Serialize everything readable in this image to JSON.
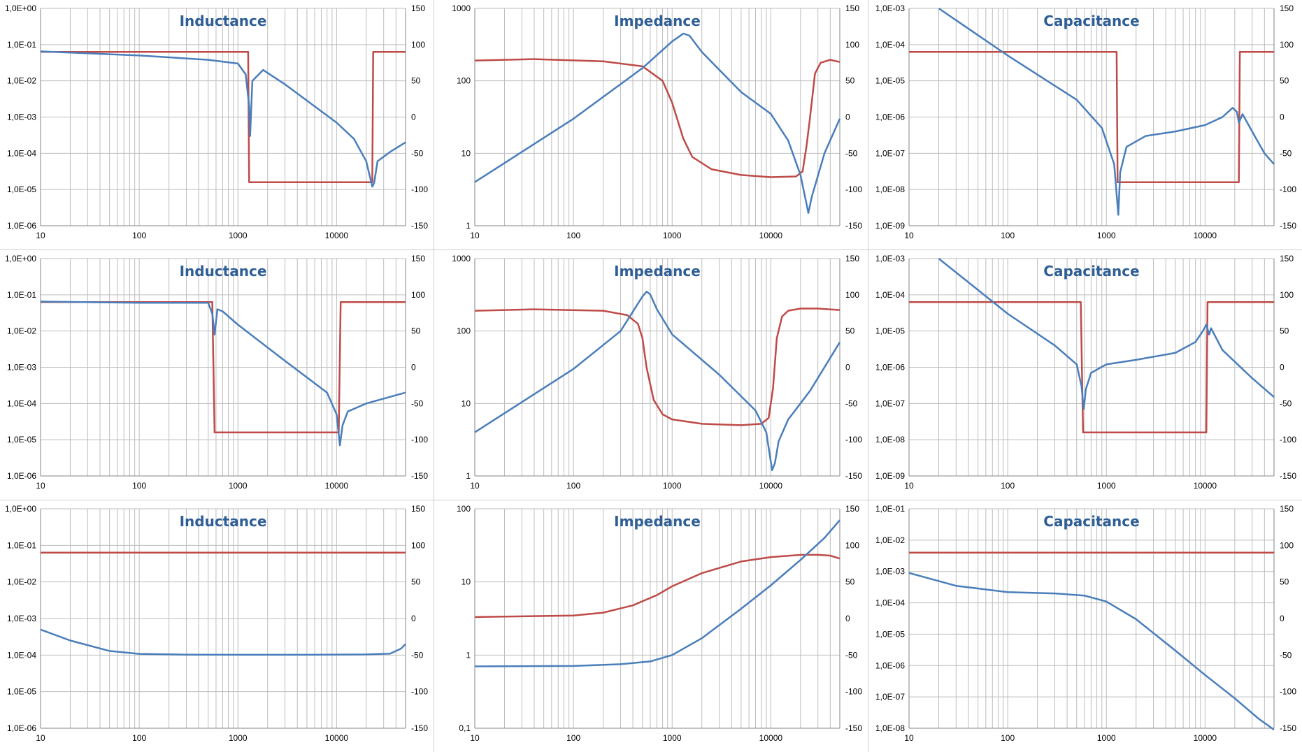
{
  "colors": {
    "primary": "#4a7ebb",
    "secondary": "#be4b48",
    "grid": "#bdbdbd",
    "axis": "#868686",
    "title": "#2e5e96"
  },
  "chart_data": [
    {
      "type": "line",
      "title": "Inductance",
      "x_scale": "log",
      "xlim": [
        10,
        50000
      ],
      "x_ticks": [
        "10",
        "100",
        "1000",
        "10000"
      ],
      "y_left": {
        "scale": "log",
        "lim": [
          1e-06,
          1
        ],
        "ticks": [
          "1,0E+00",
          "1,0E-01",
          "1,0E-02",
          "1,0E-03",
          "1,0E-04",
          "1,0E-05",
          "1,0E-06"
        ]
      },
      "y_right": {
        "lim": [
          -150,
          150
        ],
        "ticks": [
          "150",
          "100",
          "50",
          "0",
          "-50",
          "-100",
          "-150"
        ]
      },
      "series": [
        {
          "axis": "left",
          "color": "#4a7ebb",
          "x": [
            10,
            100,
            500,
            1000,
            1200,
            1300,
            1330,
            1400,
            1800,
            3000,
            10000,
            15000,
            20000,
            23000,
            24000,
            26000,
            35000,
            50000
          ],
          "y": [
            0.065,
            0.05,
            0.038,
            0.03,
            0.015,
            0.002,
            0.0003,
            0.01,
            0.02,
            0.008,
            0.0007,
            0.00025,
            6e-05,
            1.2e-05,
            1.5e-05,
            6e-05,
            0.00011,
            0.0002
          ]
        },
        {
          "axis": "right",
          "color": "#be4b48",
          "x": [
            10,
            1270,
            1300,
            23000,
            23500,
            50000
          ],
          "y": [
            90,
            90,
            -90,
            -90,
            90,
            90
          ]
        }
      ]
    },
    {
      "type": "line",
      "title": "Impedance",
      "x_scale": "log",
      "xlim": [
        10,
        50000
      ],
      "x_ticks": [
        "10",
        "100",
        "1000",
        "10000"
      ],
      "y_left": {
        "scale": "log",
        "lim": [
          1,
          1000
        ],
        "ticks": [
          "1000",
          "100",
          "10",
          "1"
        ]
      },
      "y_right": {
        "lim": [
          -150,
          150
        ],
        "ticks": [
          "150",
          "100",
          "50",
          "0",
          "-50",
          "-100",
          "-150"
        ]
      },
      "series": [
        {
          "axis": "left",
          "color": "#4a7ebb",
          "x": [
            10,
            100,
            500,
            1000,
            1300,
            1500,
            2000,
            5000,
            10000,
            15000,
            20000,
            23000,
            24000,
            26000,
            35000,
            50000
          ],
          "y": [
            4,
            30,
            150,
            350,
            450,
            420,
            250,
            70,
            35,
            15,
            5,
            2,
            1.5,
            2.5,
            10,
            30
          ]
        },
        {
          "axis": "right",
          "color": "#be4b48",
          "x": [
            10,
            40,
            200,
            500,
            800,
            1000,
            1300,
            1600,
            2500,
            5000,
            10000,
            18000,
            21000,
            23000,
            25000,
            28000,
            32000,
            40000,
            50000
          ],
          "y": [
            78,
            80,
            77,
            70,
            50,
            20,
            -30,
            -55,
            -72,
            -80,
            -83,
            -82,
            -75,
            -40,
            0,
            60,
            75,
            79,
            76
          ]
        }
      ]
    },
    {
      "type": "line",
      "title": "Capacitance",
      "x_scale": "log",
      "xlim": [
        10,
        50000
      ],
      "x_ticks": [
        "10",
        "100",
        "1000",
        "10000"
      ],
      "y_left": {
        "scale": "log",
        "lim": [
          1e-09,
          0.001
        ],
        "ticks": [
          "1,0E-03",
          "1,0E-04",
          "1,0E-05",
          "1,0E-06",
          "1,0E-07",
          "1,0E-08",
          "1,0E-09"
        ]
      },
      "y_right": {
        "lim": [
          -150,
          150
        ],
        "ticks": [
          "150",
          "100",
          "50",
          "0",
          "-50",
          "-100",
          "-150"
        ]
      },
      "series": [
        {
          "axis": "left",
          "color": "#4a7ebb",
          "x": [
            20,
            100,
            500,
            900,
            1200,
            1290,
            1320,
            1380,
            1600,
            2500,
            5000,
            10000,
            15000,
            19000,
            21000,
            22000,
            24000,
            30000,
            40000,
            50000
          ],
          "y": [
            0.001,
            5e-05,
            3e-06,
            5e-07,
            5e-08,
            4.5e-09,
            2e-09,
            3e-08,
            1.5e-07,
            3e-07,
            4e-07,
            6e-07,
            1e-06,
            1.8e-06,
            1.4e-06,
            7e-07,
            1.2e-06,
            4e-07,
            1e-07,
            5e-08
          ]
        },
        {
          "axis": "right",
          "color": "#be4b48",
          "x": [
            10,
            1270,
            1300,
            22000,
            22500,
            50000
          ],
          "y": [
            90,
            90,
            -90,
            -90,
            90,
            90
          ]
        }
      ]
    },
    {
      "type": "line",
      "title": "Inductance",
      "x_scale": "log",
      "xlim": [
        10,
        50000
      ],
      "x_ticks": [
        "10",
        "100",
        "1000",
        "10000"
      ],
      "y_left": {
        "scale": "log",
        "lim": [
          1e-06,
          1
        ],
        "ticks": [
          "1,0E+00",
          "1,0E-01",
          "1,0E-02",
          "1,0E-03",
          "1,0E-04",
          "1,0E-05",
          "1,0E-06"
        ]
      },
      "y_right": {
        "lim": [
          -150,
          150
        ],
        "ticks": [
          "150",
          "100",
          "50",
          "0",
          "-50",
          "-100",
          "-150"
        ]
      },
      "series": [
        {
          "axis": "left",
          "color": "#4a7ebb",
          "x": [
            10,
            100,
            400,
            500,
            550,
            580,
            620,
            700,
            1000,
            3000,
            8000,
            10000,
            10800,
            11500,
            13000,
            20000,
            50000
          ],
          "y": [
            0.065,
            0.06,
            0.06,
            0.06,
            0.03,
            0.008,
            0.04,
            0.035,
            0.015,
            0.0015,
            0.0002,
            5e-05,
            7e-06,
            2.5e-05,
            6e-05,
            0.0001,
            0.0002
          ]
        },
        {
          "axis": "right",
          "color": "#be4b48",
          "x": [
            10,
            550,
            580,
            10500,
            11000,
            50000
          ],
          "y": [
            90,
            90,
            -90,
            -90,
            90,
            90
          ]
        }
      ]
    },
    {
      "type": "line",
      "title": "Impedance",
      "x_scale": "log",
      "xlim": [
        10,
        50000
      ],
      "x_ticks": [
        "10",
        "100",
        "1000",
        "10000"
      ],
      "y_left": {
        "scale": "log",
        "lim": [
          1,
          1000
        ],
        "ticks": [
          "1000",
          "100",
          "10",
          "1"
        ]
      },
      "y_right": {
        "lim": [
          -150,
          150
        ],
        "ticks": [
          "150",
          "100",
          "50",
          "0",
          "-50",
          "-100",
          "-150"
        ]
      },
      "series": [
        {
          "axis": "left",
          "color": "#4a7ebb",
          "x": [
            10,
            100,
            300,
            500,
            550,
            600,
            700,
            1000,
            3000,
            7000,
            9000,
            10300,
            11000,
            12000,
            15000,
            25000,
            50000
          ],
          "y": [
            4,
            30,
            100,
            300,
            350,
            320,
            200,
            90,
            25,
            8,
            4,
            1.2,
            1.5,
            3,
            6,
            15,
            70
          ]
        },
        {
          "axis": "right",
          "color": "#be4b48",
          "x": [
            10,
            40,
            200,
            350,
            450,
            500,
            550,
            650,
            800,
            1000,
            2000,
            5000,
            8000,
            9500,
            10500,
            11500,
            13000,
            15000,
            20000,
            30000,
            50000
          ],
          "y": [
            78,
            80,
            78,
            72,
            60,
            40,
            0,
            -45,
            -65,
            -72,
            -78,
            -80,
            -78,
            -70,
            -30,
            40,
            70,
            78,
            81,
            81,
            79
          ]
        }
      ]
    },
    {
      "type": "line",
      "title": "Capacitance",
      "x_scale": "log",
      "xlim": [
        10,
        50000
      ],
      "x_ticks": [
        "10",
        "100",
        "1000",
        "10000"
      ],
      "y_left": {
        "scale": "log",
        "lim": [
          1e-09,
          0.001
        ],
        "ticks": [
          "1,0E-03",
          "1,0E-04",
          "1,0E-05",
          "1,0E-06",
          "1,0E-07",
          "1,0E-08",
          "1,0E-09"
        ]
      },
      "y_right": {
        "lim": [
          -150,
          150
        ],
        "ticks": [
          "150",
          "100",
          "50",
          "0",
          "-50",
          "-100",
          "-150"
        ]
      },
      "series": [
        {
          "axis": "left",
          "color": "#4a7ebb",
          "x": [
            20,
            100,
            300,
            500,
            560,
            590,
            620,
            700,
            1000,
            2000,
            5000,
            8000,
            9500,
            10300,
            11000,
            11500,
            15000,
            30000,
            50000
          ],
          "y": [
            0.001,
            3e-05,
            4e-06,
            1.2e-06,
            3e-07,
            7e-08,
            2.5e-07,
            7e-07,
            1.2e-06,
            1.6e-06,
            2.5e-06,
            5e-06,
            1e-05,
            1.5e-05,
            8e-06,
            1.2e-05,
            3e-06,
            5e-07,
            1.5e-07
          ]
        },
        {
          "axis": "right",
          "color": "#be4b48",
          "x": [
            10,
            550,
            580,
            10300,
            10600,
            50000
          ],
          "y": [
            90,
            90,
            -90,
            -90,
            90,
            90
          ]
        }
      ]
    },
    {
      "type": "line",
      "title": "Inductance",
      "x_scale": "log",
      "xlim": [
        10,
        50000
      ],
      "x_ticks": [
        "10",
        "100",
        "1000",
        "10000"
      ],
      "y_left": {
        "scale": "log",
        "lim": [
          1e-06,
          1
        ],
        "ticks": [
          "1,0E+00",
          "1,0E-01",
          "1,0E-02",
          "1,0E-03",
          "1,0E-04",
          "1,0E-05",
          "1,0E-06"
        ]
      },
      "y_right": {
        "lim": [
          -150,
          150
        ],
        "ticks": [
          "150",
          "100",
          "50",
          "0",
          "-50",
          "-100",
          "-150"
        ]
      },
      "series": [
        {
          "axis": "left",
          "color": "#4a7ebb",
          "x": [
            10,
            20,
            50,
            100,
            300,
            1000,
            5000,
            20000,
            35000,
            45000,
            50000
          ],
          "y": [
            0.0005,
            0.00025,
            0.00013,
            0.000108,
            0.000103,
            0.000102,
            0.000102,
            0.000104,
            0.00011,
            0.00015,
            0.0002
          ]
        },
        {
          "axis": "right",
          "color": "#be4b48",
          "x": [
            10,
            50000
          ],
          "y": [
            90,
            90
          ]
        }
      ]
    },
    {
      "type": "line",
      "title": "Impedance",
      "x_scale": "log",
      "xlim": [
        10,
        50000
      ],
      "x_ticks": [
        "10",
        "100",
        "1000",
        "10000"
      ],
      "y_left": {
        "scale": "log",
        "lim": [
          0.1,
          100
        ],
        "ticks": [
          "100",
          "10",
          "1",
          "0,1"
        ]
      },
      "y_right": {
        "lim": [
          -150,
          150
        ],
        "ticks": [
          "150",
          "100",
          "50",
          "0",
          "-50",
          "-100",
          "-150"
        ]
      },
      "series": [
        {
          "axis": "left",
          "color": "#4a7ebb",
          "x": [
            10,
            100,
            300,
            600,
            1000,
            2000,
            5000,
            10000,
            20000,
            35000,
            50000
          ],
          "y": [
            0.7,
            0.71,
            0.75,
            0.82,
            1.0,
            1.7,
            4.3,
            9,
            20,
            40,
            70
          ]
        },
        {
          "axis": "right",
          "color": "#be4b48",
          "x": [
            10,
            100,
            200,
            400,
            700,
            1000,
            2000,
            5000,
            10000,
            20000,
            30000,
            40000,
            50000
          ],
          "y": [
            2,
            4,
            8,
            18,
            32,
            44,
            62,
            78,
            84,
            87,
            87,
            86,
            82
          ]
        }
      ]
    },
    {
      "type": "line",
      "title": "Capacitance",
      "x_scale": "log",
      "xlim": [
        10,
        50000
      ],
      "x_ticks": [
        "10",
        "100",
        "1000",
        "10000"
      ],
      "y_left": {
        "scale": "log",
        "lim": [
          1e-08,
          0.1
        ],
        "ticks": [
          "1,0E-01",
          "1,0E-02",
          "1,0E-03",
          "1,0E-04",
          "1,0E-05",
          "1,0E-06",
          "1,0E-07",
          "1,0E-08"
        ]
      },
      "y_right": {
        "lim": [
          -150,
          150
        ],
        "ticks": [
          "150",
          "100",
          "50",
          "0",
          "-50",
          "-100",
          "-150"
        ]
      },
      "series": [
        {
          "axis": "left",
          "color": "#4a7ebb",
          "x": [
            10,
            30,
            100,
            300,
            600,
            1000,
            2000,
            5000,
            10000,
            20000,
            35000,
            50000
          ],
          "y": [
            0.0009,
            0.00035,
            0.00022,
            0.0002,
            0.00017,
            0.00011,
            3e-05,
            3e-06,
            5e-07,
            9e-08,
            2e-08,
            9e-09
          ]
        },
        {
          "axis": "right",
          "color": "#be4b48",
          "x": [
            10,
            50000
          ],
          "y": [
            90,
            90
          ]
        }
      ]
    }
  ]
}
